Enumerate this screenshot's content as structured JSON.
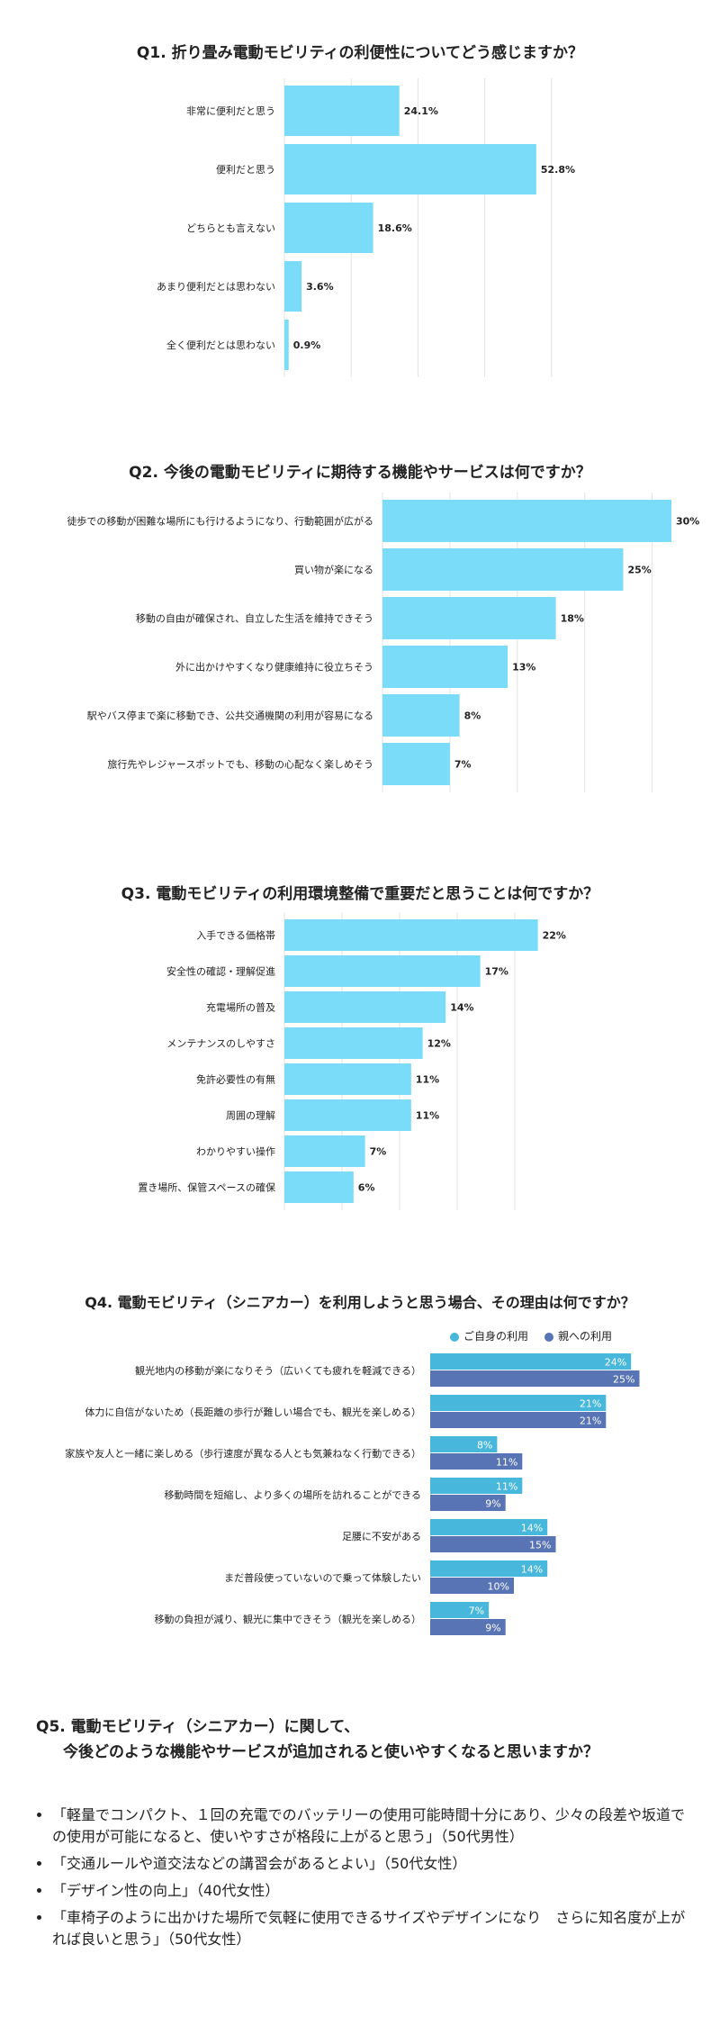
{
  "colors": {
    "bar": "#7bdcfa",
    "grid": "#e3e3e3",
    "self": "#47b8dc",
    "parent": "#5874b4"
  },
  "q1": {
    "title": "Q1. 折り畳み電動モビリティの利便性についてどう感じますか？",
    "chart_data": {
      "type": "bar",
      "orientation": "horizontal",
      "categories": [
        "非常に便利だと思う",
        "便利だと思う",
        "どちらとも言えない",
        "あまり便利だとは思わない",
        "全く便利だとは思わない"
      ],
      "values": [
        24.1,
        52.8,
        18.6,
        3.6,
        0.9
      ],
      "value_labels": [
        "24.1%",
        "52.8%",
        "18.6%",
        "3.6%",
        "0.9%"
      ],
      "xlim": [
        0,
        60
      ]
    }
  },
  "q2": {
    "title": "Q2. 今後の電動モビリティに期待する機能やサービスは何ですか？",
    "chart_data": {
      "type": "bar",
      "orientation": "horizontal",
      "categories": [
        "徒歩での移動が困難な場所にも行けるようになり、行動範囲が広がる",
        "買い物が楽になる",
        "移動の自由が確保され、自立した生活を維持できそう",
        "外に出かけやすくなり健康維持に役立ちそう",
        "駅やバス停まで楽に移動でき、公共交通機関の利用が容易になる",
        "旅行先やレジャースポットでも、移動の心配なく楽しめそう"
      ],
      "values": [
        30,
        25,
        18,
        13,
        8,
        7
      ],
      "value_labels": [
        "30%",
        "25%",
        "18%",
        "13%",
        "8%",
        "7%"
      ],
      "xlim": [
        0,
        30
      ]
    }
  },
  "q3": {
    "title": "Q3. 電動モビリティの利用環境整備で重要だと思うことは何ですか？",
    "chart_data": {
      "type": "bar",
      "orientation": "horizontal",
      "categories": [
        "入手できる価格帯",
        "安全性の確認・理解促進",
        "充電場所の普及",
        "メンテナンスのしやすさ",
        "免許必要性の有無",
        "周囲の理解",
        "わかりやすい操作",
        "置き場所、保管スペースの確保"
      ],
      "values": [
        22,
        17,
        14,
        12,
        11,
        11,
        7,
        6
      ],
      "value_labels": [
        "22%",
        "17%",
        "14%",
        "12%",
        "11%",
        "11%",
        "7%",
        "6%"
      ],
      "xlim": [
        0,
        25
      ]
    }
  },
  "q4": {
    "title": "Q4. 電動モビリティ（シニアカー）を利用しようと思う場合、その理由は何ですか？",
    "chart_data": {
      "type": "bar",
      "orientation": "horizontal",
      "categories": [
        "観光地内の移動が楽になりそう（広いくても疲れを軽減できる）",
        "体力に自信がないため（長距離の歩行が難しい場合でも、観光を楽しめる）",
        "家族や友人と一緒に楽しめる（歩行速度が異なる人とも気兼ねなく行動できる）",
        "移動時間を短縮し、より多くの場所を訪れることができる",
        "足腰に不安がある",
        "まだ普段使っていないので乗って体験したい",
        "移動の負担が減り、観光に集中できそう（観光を楽しめる）"
      ],
      "series": [
        {
          "name": "ご自身の利用",
          "values": [
            24,
            21,
            8,
            11,
            14,
            14,
            7
          ],
          "labels": [
            "24%",
            "21%",
            "8%",
            "11%",
            "14%",
            "14%",
            "7%"
          ]
        },
        {
          "name": "親への利用",
          "values": [
            25,
            21,
            11,
            9,
            15,
            10,
            9
          ],
          "labels": [
            "25%",
            "21%",
            "11%",
            "9%",
            "15%",
            "10%",
            "9%"
          ]
        }
      ],
      "legend": "top-right",
      "xlim": [
        0,
        25
      ]
    }
  },
  "q5": {
    "title_line1": "Q5. 電動モビリティ（シニアカー）に関して、",
    "title_line2": "今後どのような機能やサービスが追加されると使いやすくなると思いますか？",
    "answers": [
      "「軽量でコンパクト、１回の充電でのバッテリーの使用可能時間十分にあり、少々の段差や坂道での使用が可能になると、使いやすさが格段に上がると思う」（50代男性）",
      "「交通ルールや道交法などの講習会があるとよい」（50代女性）",
      "「デザイン性の向上」（40代女性）",
      "「車椅子のように出かけた場所で気軽に使用できるサイズやデザインになり　さらに知名度が上がれば良いと思う」（50代女性）"
    ]
  }
}
